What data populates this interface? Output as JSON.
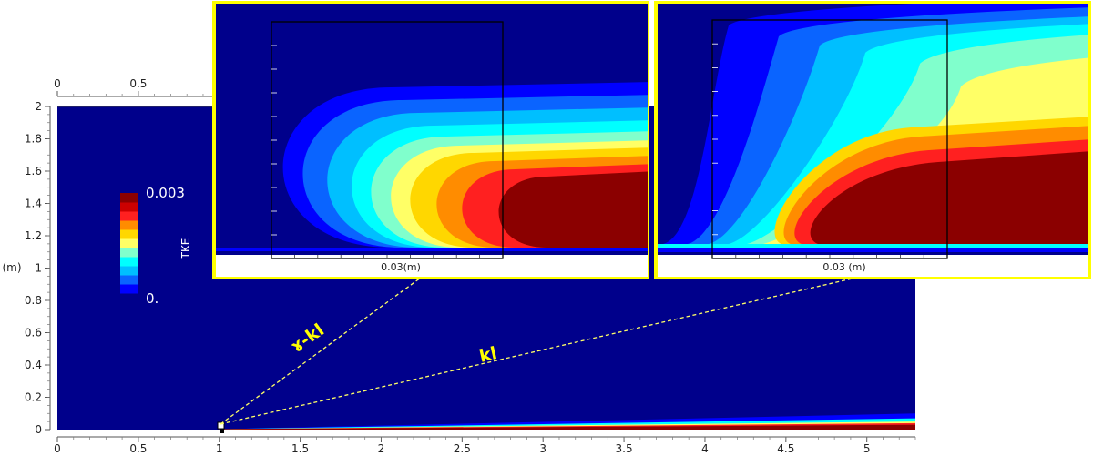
{
  "chart_data": [
    {
      "type": "heatmap",
      "title": "",
      "x_axis": {
        "ticks": [
          "0",
          "0.5",
          "1",
          "1.5",
          "2",
          "2.5",
          "3",
          "3.5",
          "4",
          "4.5",
          "5"
        ],
        "xlim": [
          0,
          5.3
        ],
        "top_ticks": [
          "0",
          "0.5"
        ]
      },
      "y_axis": {
        "label": "(m)",
        "ticks": [
          "0",
          "0.2",
          "0.4",
          "0.6",
          "0.8",
          "1",
          "1.2",
          "1.4",
          "1.6",
          "1.8",
          "2"
        ],
        "ylim": [
          0,
          2
        ]
      },
      "colorbar": {
        "label": "TKE",
        "max_label": "0.003",
        "min_label": "0.",
        "range": [
          0,
          0.003
        ],
        "colors": [
          "#00008b",
          "#0000ff",
          "#0a64ff",
          "#00bfff",
          "#00ffff",
          "#80ffcc",
          "#ffff66",
          "#ffd700",
          "#ff8c00",
          "#ff2020",
          "#cc0000",
          "#8b0000"
        ]
      },
      "background_color": "#00008b",
      "boundary_layer": {
        "x_start": 1.0,
        "x_end": 5.3,
        "thickness_start": 0.0,
        "thickness_end": 0.1
      },
      "annotations": [
        {
          "text": "ɤ-kl",
          "color": "#ffff00"
        },
        {
          "text": "kl",
          "color": "#ffff00"
        }
      ]
    },
    {
      "type": "heatmap",
      "title": "",
      "model": "ɤ-kl",
      "x_label": "0.03(m)",
      "frame_color": "#ffff00"
    },
    {
      "type": "heatmap",
      "title": "",
      "model": "kl",
      "x_label": "0.03 (m)",
      "frame_color": "#ffff00"
    }
  ]
}
